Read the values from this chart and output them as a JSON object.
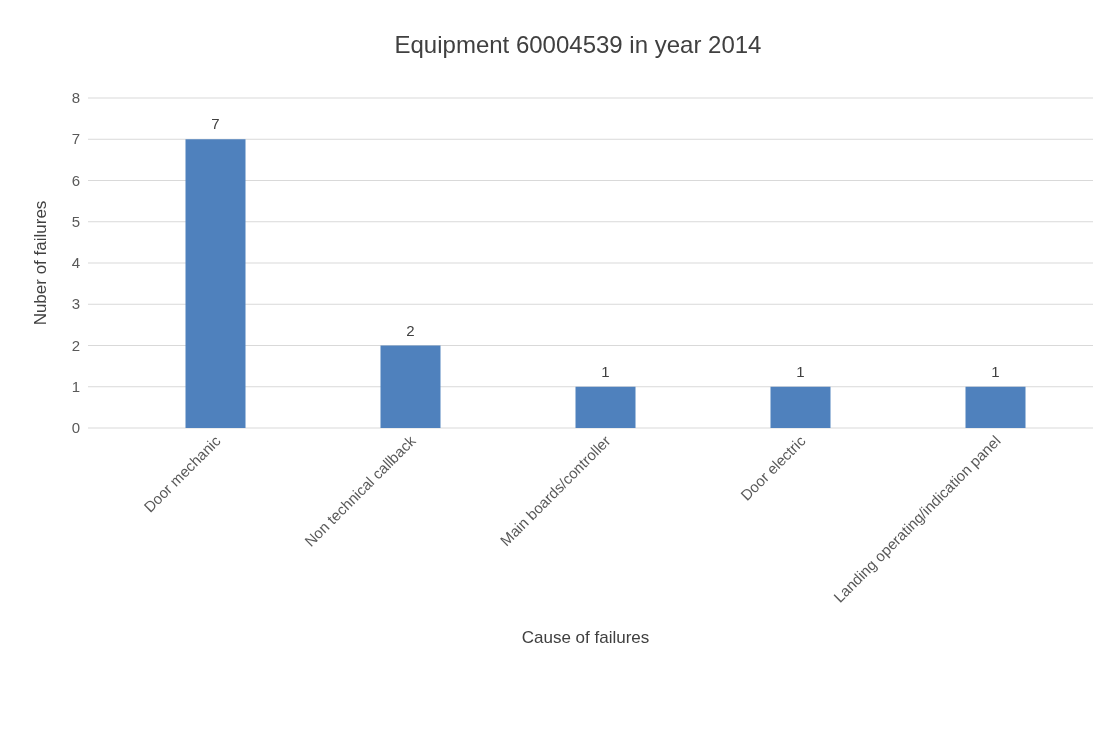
{
  "chart_data": {
    "type": "bar",
    "title": "Equipment 60004539 in year 2014",
    "xlabel": "Cause of failures",
    "ylabel": "Nuber of failures",
    "categories": [
      "Door mechanic",
      "Non technical callback",
      "Main boards/controller",
      "Door electric",
      "Landing operating/indication panel"
    ],
    "values": [
      7,
      2,
      1,
      1,
      1
    ],
    "color": "#4f81bd",
    "ylim": [
      0,
      8
    ],
    "yticks": [
      0,
      1,
      2,
      3,
      4,
      5,
      6,
      7,
      8
    ],
    "grid": "y",
    "data_labels": true
  }
}
